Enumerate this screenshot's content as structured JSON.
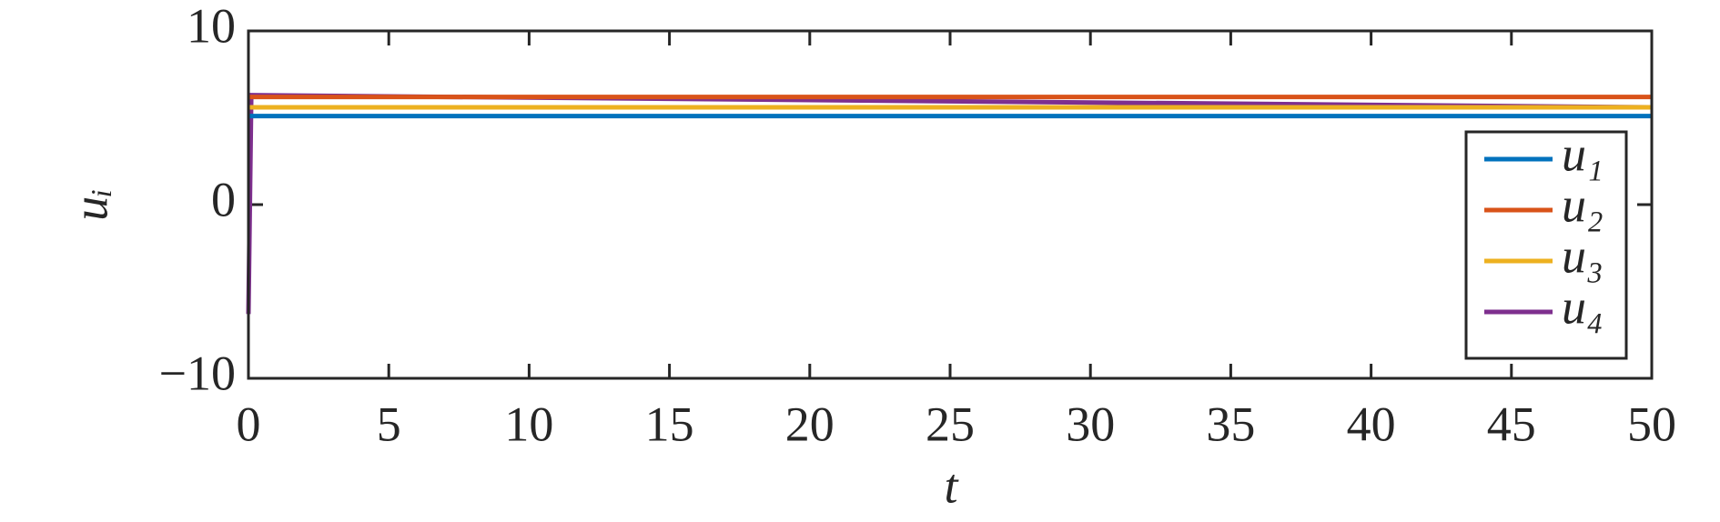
{
  "chart_data": {
    "type": "line",
    "xlabel": "t",
    "ylabel": "uᵢ",
    "x": [
      0,
      0.1,
      50
    ],
    "series": [
      {
        "name": "u₁",
        "color": "#0072bd",
        "values": [
          5.1,
          5.1,
          5.1
        ]
      },
      {
        "name": "u₂",
        "color": "#d95319",
        "values": [
          6.2,
          6.2,
          6.2
        ]
      },
      {
        "name": "u₃",
        "color": "#edb120",
        "values": [
          5.6,
          5.6,
          5.6
        ]
      },
      {
        "name": "u₄",
        "color": "#7e2f8e",
        "values": [
          -6.3,
          6.3,
          5.6
        ]
      }
    ],
    "xlim": [
      0,
      50
    ],
    "xticks": [
      0,
      5,
      10,
      15,
      20,
      25,
      30,
      35,
      40,
      45,
      50
    ],
    "ylim": [
      -10,
      10
    ],
    "yticks": [
      {
        "value": -10,
        "label": "−10"
      },
      0,
      10
    ],
    "legend": "lower right",
    "grid": false
  }
}
